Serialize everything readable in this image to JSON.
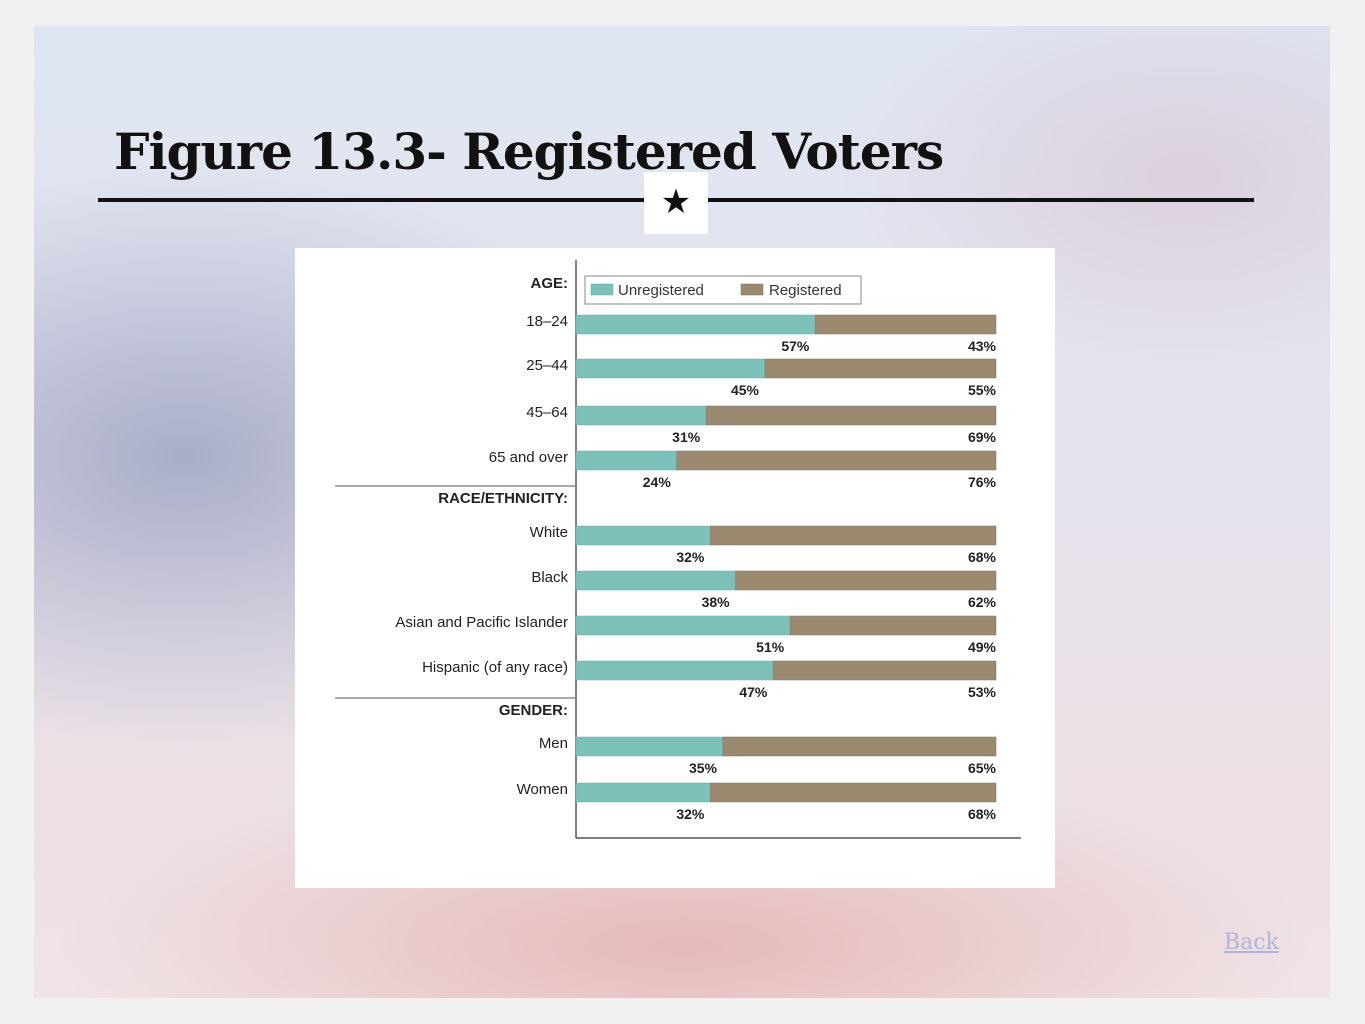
{
  "slide": {
    "title": "Figure 13.3- Registered Voters",
    "star_glyph": "★",
    "back_label": "Back",
    "background_colors": [
      "#dfe6f2",
      "#ece0e4",
      "#8088aa",
      "#de9696"
    ]
  },
  "chart_data": {
    "type": "bar",
    "stacked": true,
    "orientation": "horizontal",
    "title": "",
    "xlabel": "",
    "ylabel": "",
    "xlim": [
      0,
      100
    ],
    "unit": "%",
    "legend_position": "top",
    "grid": false,
    "series": [
      {
        "name": "Unregistered",
        "color": "#7cc0b8"
      },
      {
        "name": "Registered",
        "color": "#9b8a70"
      }
    ],
    "groups": [
      {
        "label": "AGE:",
        "rows": [
          {
            "label": "18–24",
            "unregistered": 57,
            "registered": 43,
            "unregistered_label": "57%",
            "registered_label": "43%"
          },
          {
            "label": "25–44",
            "unregistered": 45,
            "registered": 55,
            "unregistered_label": "45%",
            "registered_label": "55%"
          },
          {
            "label": "45–64",
            "unregistered": 31,
            "registered": 69,
            "unregistered_label": "31%",
            "registered_label": "69%"
          },
          {
            "label": "65 and over",
            "unregistered": 24,
            "registered": 76,
            "unregistered_label": "24%",
            "registered_label": "76%"
          }
        ]
      },
      {
        "label": "RACE/ETHNICITY:",
        "rows": [
          {
            "label": "White",
            "unregistered": 32,
            "registered": 68,
            "unregistered_label": "32%",
            "registered_label": "68%"
          },
          {
            "label": "Black",
            "unregistered": 38,
            "registered": 62,
            "unregistered_label": "38%",
            "registered_label": "62%"
          },
          {
            "label": "Asian and Pacific Islander",
            "unregistered": 51,
            "registered": 49,
            "unregistered_label": "51%",
            "registered_label": "49%"
          },
          {
            "label": "Hispanic (of any race)",
            "unregistered": 47,
            "registered": 53,
            "unregistered_label": "47%",
            "registered_label": "53%"
          }
        ]
      },
      {
        "label": "GENDER:",
        "rows": [
          {
            "label": "Men",
            "unregistered": 35,
            "registered": 65,
            "unregistered_label": "35%",
            "registered_label": "65%"
          },
          {
            "label": "Women",
            "unregistered": 32,
            "registered": 68,
            "unregistered_label": "32%",
            "registered_label": "68%"
          }
        ]
      }
    ]
  }
}
